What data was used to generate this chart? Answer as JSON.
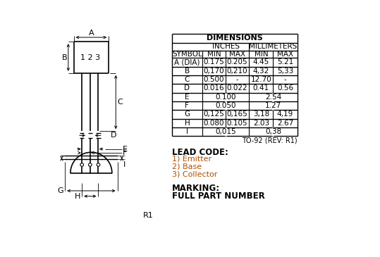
{
  "title": "DIMENSIONS",
  "table_subheaders": [
    "INCHES",
    "MILLIMETERS"
  ],
  "table_rows": [
    [
      "A (DIA)",
      "0.175",
      "0.205",
      "4.45",
      "5.21"
    ],
    [
      "B",
      "0,170",
      "0,210",
      "4,32",
      "5,33"
    ],
    [
      "C",
      "0.500",
      "-",
      "12.70",
      "-"
    ],
    [
      "D",
      "0.016",
      "0.022",
      "0.41",
      "0.56"
    ],
    [
      "E",
      "0.100",
      "",
      "2.54",
      ""
    ],
    [
      "F",
      "0.050",
      "",
      "1.27",
      ""
    ],
    [
      "G",
      "0,125",
      "0,165",
      "3,18",
      "4,19"
    ],
    [
      "H",
      "0.080",
      "0.105",
      "2.03",
      "2.67"
    ],
    [
      "I",
      "0,015",
      "",
      "0,38",
      ""
    ]
  ],
  "note": "TO-92 (REV: R1)",
  "lead_code_title": "LEAD CODE:",
  "lead_codes": [
    "1) Emitter",
    "2) Base",
    "3) Collector"
  ],
  "marking_title": "MARKING:",
  "marking_value": "FULL PART NUMBER",
  "r_label": "R1",
  "bg_color": "#ffffff"
}
